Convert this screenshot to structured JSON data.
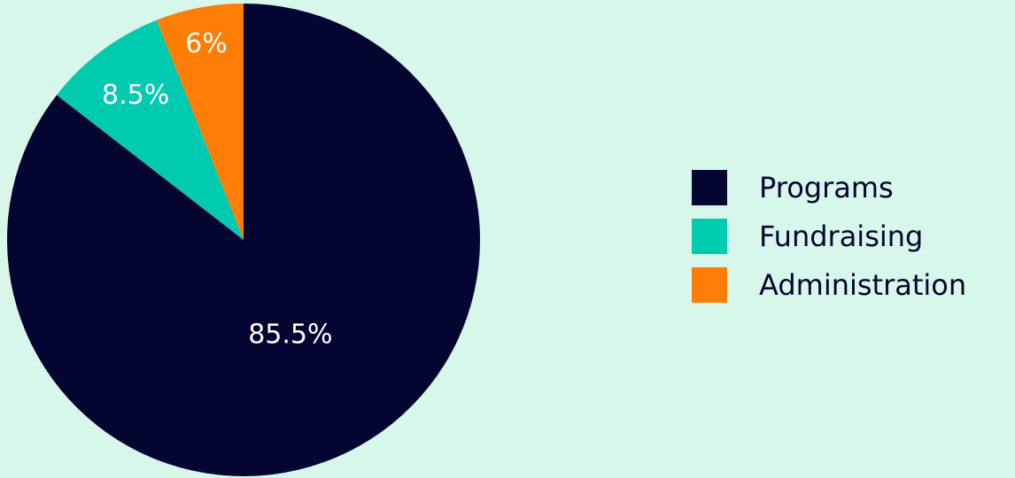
{
  "chart_data": {
    "type": "pie",
    "categories": [
      "Programs",
      "Fundraising",
      "Administration"
    ],
    "values": [
      85.5,
      8.5,
      6
    ],
    "labels": [
      "85.5%",
      "8.5%",
      "6%"
    ],
    "colors": [
      "#050531",
      "#00cbb0",
      "#fe7d06"
    ],
    "start_angle_deg": 0,
    "direction": "clockwise",
    "legend_position": "right"
  }
}
